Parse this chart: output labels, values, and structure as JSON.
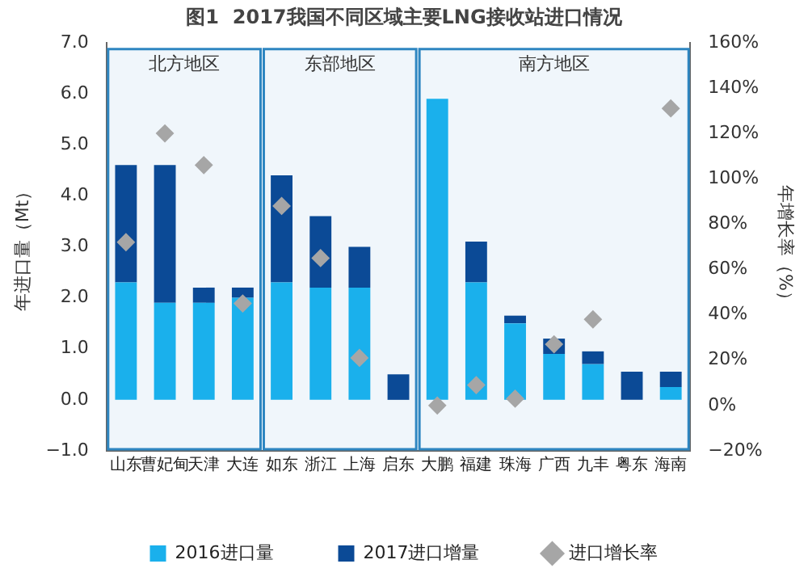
{
  "chart_data": {
    "type": "bar",
    "title": "图1  2017我国不同区域主要LNG接收站进口情况",
    "ylabel": "年进口量（Mt）",
    "y2label": "年增长率（%）",
    "categories": [
      "山东",
      "曹妃甸",
      "天津",
      "大连",
      "如东",
      "浙江",
      "上海",
      "启东",
      "大鹏",
      "福建",
      "珠海",
      "广西",
      "九丰",
      "粤东",
      "海南"
    ],
    "stacked": true,
    "series": [
      {
        "name": "2016进口量",
        "color": "#1ab0ec",
        "values": [
          2.3,
          1.9,
          1.9,
          2.0,
          2.3,
          2.2,
          2.2,
          0,
          5.9,
          2.3,
          1.5,
          0.9,
          0.7,
          0,
          0.25
        ]
      },
      {
        "name": "2017进口增量",
        "color": "#0b4a96",
        "values": [
          2.3,
          2.7,
          0.3,
          0.2,
          2.1,
          1.4,
          0.8,
          0.5,
          0,
          0.8,
          0.15,
          0.3,
          0.25,
          0.55,
          0.3
        ]
      },
      {
        "name": "进口增长率",
        "type": "scatter",
        "axis": "y2",
        "marker": "diamond",
        "color": "#a6a6a6",
        "x": [
          "山东",
          "曹妃甸",
          "天津",
          "大连",
          "如东",
          "浙江",
          "上海",
          "启东",
          "大鹏",
          "福建",
          "珠海",
          "广西",
          "九丰",
          "粤东",
          "海南"
        ],
        "values": [
          72,
          120,
          106,
          45,
          88,
          65,
          21,
          null,
          0,
          9,
          3,
          27,
          38,
          null,
          131
        ]
      }
    ],
    "ylim": [
      -1,
      7
    ],
    "yticks": [
      {
        "value": -1,
        "label": "−1.0"
      },
      {
        "value": 0,
        "label": "0.0"
      },
      {
        "value": 1,
        "label": "1.0"
      },
      {
        "value": 2,
        "label": "2.0"
      },
      {
        "value": 3,
        "label": "3.0"
      },
      {
        "value": 4,
        "label": "4.0"
      },
      {
        "value": 5,
        "label": "5.0"
      },
      {
        "value": 6,
        "label": "6.0"
      },
      {
        "value": 7,
        "label": "7.0"
      }
    ],
    "y2lim": [
      -20,
      160
    ],
    "y2ticks": [
      {
        "value": -20,
        "label": "−20%"
      },
      {
        "value": 0,
        "label": "0%"
      },
      {
        "value": 20,
        "label": "20%"
      },
      {
        "value": 40,
        "label": "40%"
      },
      {
        "value": 60,
        "label": "60%"
      },
      {
        "value": 80,
        "label": "80%"
      },
      {
        "value": 100,
        "label": "100%"
      },
      {
        "value": 120,
        "label": "120%"
      },
      {
        "value": 140,
        "label": "140%"
      },
      {
        "value": 160,
        "label": "160%"
      }
    ],
    "bands": [
      {
        "axis": "x",
        "from": "山东",
        "to": "大连",
        "label": "北方地区",
        "color": "#2e86c1"
      },
      {
        "axis": "x",
        "from": "如东",
        "to": "启东",
        "label": "东部地区",
        "color": "#2e86c1"
      },
      {
        "axis": "x",
        "from": "大鹏",
        "to": "海南",
        "label": "南方地区",
        "color": "#2e86c1"
      }
    ],
    "grid": false,
    "legend": "bottom"
  }
}
